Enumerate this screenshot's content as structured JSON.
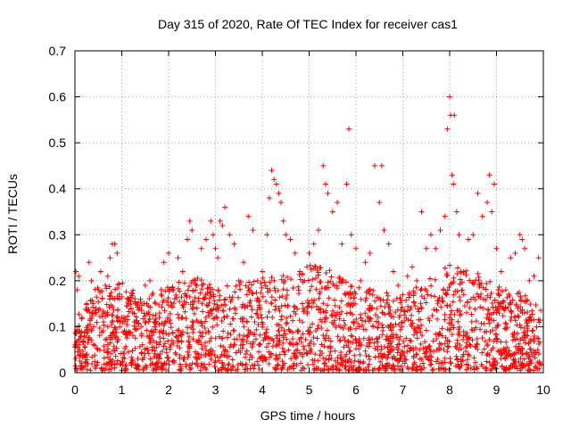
{
  "chart_data": {
    "type": "scatter",
    "title": "Day 315 of 2020, Rate Of TEC Index for receiver cas1",
    "xlabel": "GPS time / hours",
    "ylabel": "ROTI / TECUs",
    "xlim": [
      0,
      10
    ],
    "ylim": [
      0,
      0.7
    ],
    "x_ticks": [
      0,
      1,
      2,
      3,
      4,
      5,
      6,
      7,
      8,
      9,
      10
    ],
    "y_ticks": [
      0,
      0.1,
      0.2,
      0.3,
      0.4,
      0.5,
      0.6,
      0.7
    ],
    "x_tick_labels": [
      "0",
      "1",
      "2",
      "3",
      "4",
      "5",
      "6",
      "7",
      "8",
      "9",
      "10"
    ],
    "y_tick_labels": [
      "0",
      "0.1",
      "0.2",
      "0.3",
      "0.4",
      "0.5",
      "0.6",
      "0.7"
    ],
    "grid": true,
    "marker": "+",
    "color": "#ff0000",
    "series": [
      {
        "name": "ROTI",
        "points": [
          [
            0.02,
            0.22
          ],
          [
            0.05,
            0.18
          ],
          [
            0.08,
            0.21
          ],
          [
            0.1,
            0.05
          ],
          [
            0.15,
            0.12
          ],
          [
            0.2,
            0.08
          ],
          [
            0.25,
            0.15
          ],
          [
            0.3,
            0.24
          ],
          [
            0.35,
            0.2
          ],
          [
            0.4,
            0.1
          ],
          [
            0.45,
            0.14
          ],
          [
            0.5,
            0.18
          ],
          [
            0.55,
            0.22
          ],
          [
            0.6,
            0.13
          ],
          [
            0.65,
            0.19
          ],
          [
            0.7,
            0.21
          ],
          [
            0.75,
            0.25
          ],
          [
            0.8,
            0.28
          ],
          [
            0.85,
            0.28
          ],
          [
            0.9,
            0.26
          ],
          [
            0.95,
            0.16
          ],
          [
            1.0,
            0.12
          ],
          [
            1.1,
            0.09
          ],
          [
            1.2,
            0.14
          ],
          [
            1.3,
            0.11
          ],
          [
            1.4,
            0.16
          ],
          [
            1.5,
            0.19
          ],
          [
            1.6,
            0.2
          ],
          [
            1.7,
            0.1
          ],
          [
            1.8,
            0.12
          ],
          [
            1.9,
            0.24
          ],
          [
            2.0,
            0.26
          ],
          [
            2.1,
            0.18
          ],
          [
            2.2,
            0.25
          ],
          [
            2.3,
            0.22
          ],
          [
            2.4,
            0.29
          ],
          [
            2.45,
            0.33
          ],
          [
            2.5,
            0.31
          ],
          [
            2.6,
            0.19
          ],
          [
            2.7,
            0.27
          ],
          [
            2.8,
            0.29
          ],
          [
            2.9,
            0.33
          ],
          [
            2.95,
            0.3
          ],
          [
            3.0,
            0.27
          ],
          [
            3.05,
            0.25
          ],
          [
            3.1,
            0.33
          ],
          [
            3.15,
            0.32
          ],
          [
            3.2,
            0.36
          ],
          [
            3.3,
            0.3
          ],
          [
            3.4,
            0.28
          ],
          [
            3.5,
            0.2
          ],
          [
            3.6,
            0.24
          ],
          [
            3.7,
            0.34
          ],
          [
            3.8,
            0.31
          ],
          [
            3.9,
            0.2
          ],
          [
            4.0,
            0.22
          ],
          [
            4.1,
            0.3
          ],
          [
            4.15,
            0.38
          ],
          [
            4.2,
            0.44
          ],
          [
            4.25,
            0.42
          ],
          [
            4.3,
            0.41
          ],
          [
            4.35,
            0.39
          ],
          [
            4.4,
            0.37
          ],
          [
            4.45,
            0.33
          ],
          [
            4.5,
            0.3
          ],
          [
            4.6,
            0.29
          ],
          [
            4.7,
            0.26
          ],
          [
            4.8,
            0.22
          ],
          [
            4.9,
            0.2
          ],
          [
            5.0,
            0.26
          ],
          [
            5.1,
            0.28
          ],
          [
            5.2,
            0.31
          ],
          [
            5.3,
            0.45
          ],
          [
            5.35,
            0.41
          ],
          [
            5.4,
            0.39
          ],
          [
            5.5,
            0.35
          ],
          [
            5.6,
            0.37
          ],
          [
            5.7,
            0.28
          ],
          [
            5.8,
            0.41
          ],
          [
            5.85,
            0.53
          ],
          [
            5.9,
            0.3
          ],
          [
            6.0,
            0.27
          ],
          [
            6.1,
            0.2
          ],
          [
            6.2,
            0.24
          ],
          [
            6.3,
            0.26
          ],
          [
            6.4,
            0.45
          ],
          [
            6.5,
            0.37
          ],
          [
            6.55,
            0.45
          ],
          [
            6.6,
            0.31
          ],
          [
            6.7,
            0.28
          ],
          [
            6.8,
            0.22
          ],
          [
            6.9,
            0.19
          ],
          [
            7.0,
            0.17
          ],
          [
            7.1,
            0.21
          ],
          [
            7.2,
            0.23
          ],
          [
            7.3,
            0.2
          ],
          [
            7.4,
            0.35
          ],
          [
            7.5,
            0.27
          ],
          [
            7.6,
            0.3
          ],
          [
            7.7,
            0.27
          ],
          [
            7.8,
            0.31
          ],
          [
            7.9,
            0.34
          ],
          [
            7.95,
            0.53
          ],
          [
            8.0,
            0.6
          ],
          [
            8.02,
            0.56
          ],
          [
            8.05,
            0.43
          ],
          [
            8.08,
            0.41
          ],
          [
            8.1,
            0.56
          ],
          [
            8.15,
            0.35
          ],
          [
            8.2,
            0.3
          ],
          [
            8.3,
            0.22
          ],
          [
            8.4,
            0.29
          ],
          [
            8.5,
            0.3
          ],
          [
            8.6,
            0.39
          ],
          [
            8.7,
            0.34
          ],
          [
            8.8,
            0.37
          ],
          [
            8.85,
            0.43
          ],
          [
            8.9,
            0.35
          ],
          [
            8.95,
            0.41
          ],
          [
            9.0,
            0.27
          ],
          [
            9.1,
            0.22
          ],
          [
            9.2,
            0.18
          ],
          [
            9.3,
            0.25
          ],
          [
            9.4,
            0.26
          ],
          [
            9.5,
            0.3
          ],
          [
            9.55,
            0.29
          ],
          [
            9.6,
            0.27
          ],
          [
            9.7,
            0.2
          ],
          [
            9.8,
            0.21
          ],
          [
            9.9,
            0.25
          ]
        ],
        "dense_band": {
          "description_values": "bulk of samples between 0 and 0.2 across the full 0-10 h range",
          "envelope_x": [
            0,
            0.5,
            1,
            1.5,
            2,
            2.5,
            3,
            3.5,
            4,
            4.5,
            5,
            5.5,
            6,
            6.5,
            7,
            7.5,
            8,
            8.5,
            9,
            9.5,
            10
          ],
          "envelope_y": [
            0.12,
            0.16,
            0.17,
            0.14,
            0.16,
            0.18,
            0.16,
            0.17,
            0.18,
            0.18,
            0.2,
            0.19,
            0.16,
            0.15,
            0.14,
            0.17,
            0.2,
            0.19,
            0.16,
            0.15,
            0.12
          ]
        }
      }
    ]
  }
}
